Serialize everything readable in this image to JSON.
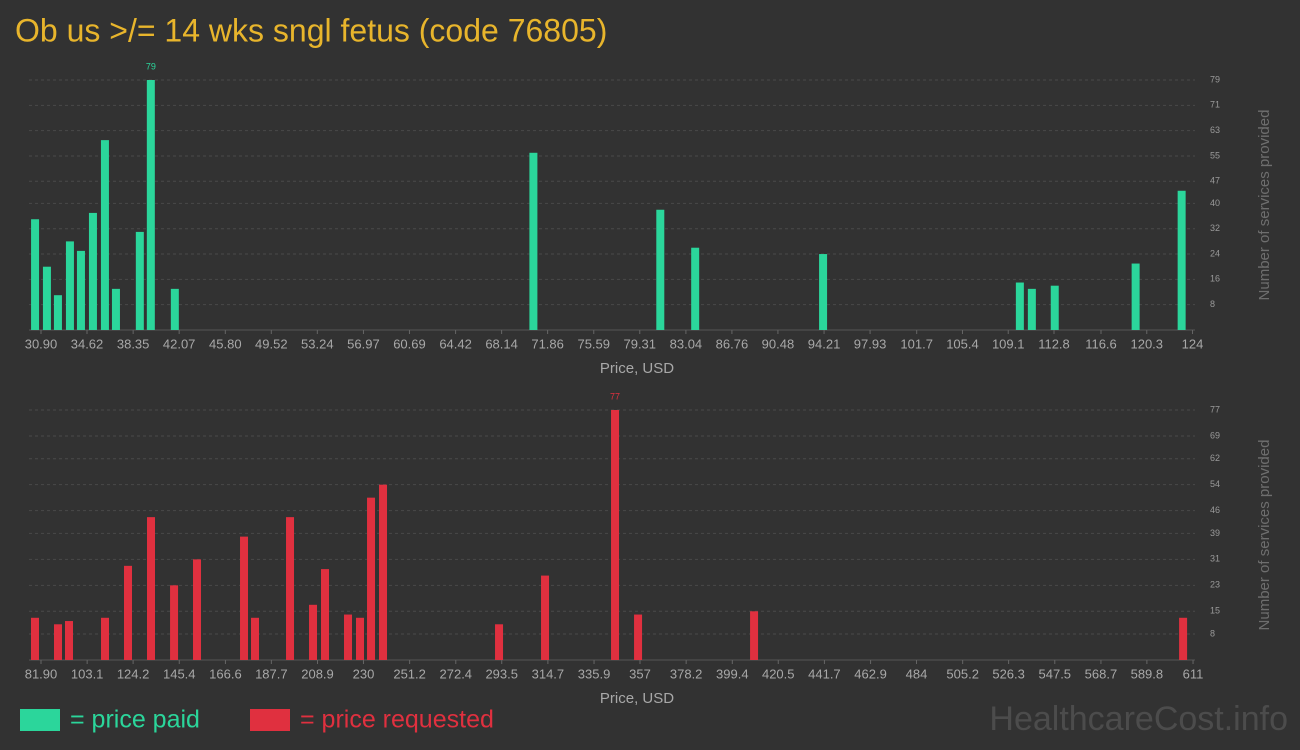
{
  "chart_data": [
    {
      "type": "bar",
      "title": "Ob us >/= 14 wks sngl fetus (code 76805)",
      "xlabel": "Price, USD",
      "ylabel": "Number of services provided",
      "x": [
        30.42,
        31.38,
        32.27,
        33.24,
        34.13,
        35.1,
        36.07,
        36.96,
        38.89,
        39.78,
        41.72,
        70.71,
        80.97,
        83.79,
        94.13,
        110.04,
        111.01,
        112.86,
        119.4,
        123.12
      ],
      "series": [
        {
          "name": "= price paid",
          "color": "#2bd69b",
          "values": [
            35,
            20,
            11,
            28,
            25,
            37,
            60,
            13,
            31,
            79,
            13,
            56,
            38,
            26,
            24,
            15,
            13,
            14,
            21,
            44
          ],
          "value_labels": [
            null,
            null,
            null,
            null,
            null,
            null,
            null,
            null,
            null,
            "79",
            null,
            null,
            null,
            null,
            null,
            null,
            null,
            null,
            null,
            null
          ]
        }
      ],
      "xlim": [
        29.93,
        124.2
      ],
      "xticks": [
        {
          "value": 30.9,
          "label": "30.90"
        },
        34.62,
        38.35,
        42.07,
        {
          "value": 45.8,
          "label": "45.80"
        },
        49.52,
        53.24,
        56.97,
        60.69,
        64.42,
        68.14,
        71.86,
        75.59,
        79.31,
        83.04,
        86.76,
        90.48,
        94.21,
        97.93,
        101.7,
        105.4,
        109.1,
        112.8,
        116.6,
        120.3,
        124
      ],
      "ylim": [
        0,
        79
      ],
      "yticks": [
        8,
        16,
        24,
        32,
        40,
        47,
        55,
        63,
        71,
        79
      ],
      "grid": true
    },
    {
      "type": "bar",
      "xlabel": "Price, USD",
      "ylabel": "Number of services provided",
      "x": [
        79.14,
        89.71,
        94.76,
        111.3,
        121.86,
        132.42,
        143.01,
        153.55,
        175.14,
        180.19,
        196.27,
        206.83,
        212.34,
        222.9,
        228.41,
        233.47,
        238.98,
        292.26,
        313.39,
        345.54,
        356.11,
        409.39,
        606.43
      ],
      "series": [
        {
          "name": "= price requested",
          "color": "#e0303f",
          "values": [
            13,
            11,
            12,
            13,
            29,
            44,
            23,
            31,
            38,
            13,
            44,
            17,
            28,
            14,
            13,
            50,
            54,
            11,
            26,
            77,
            14,
            15,
            13
          ],
          "value_labels": [
            null,
            null,
            null,
            null,
            null,
            null,
            null,
            null,
            null,
            null,
            null,
            null,
            null,
            null,
            null,
            null,
            null,
            null,
            null,
            "77",
            null,
            null,
            null
          ]
        }
      ],
      "xlim": [
        76.39,
        611.9
      ],
      "xticks": [
        {
          "value": 81.9,
          "label": "81.90"
        },
        103.1,
        124.2,
        145.4,
        166.6,
        187.7,
        208.9,
        230,
        251.2,
        272.4,
        293.5,
        314.7,
        335.9,
        357,
        378.2,
        399.4,
        420.5,
        441.7,
        462.9,
        484,
        505.2,
        526.3,
        547.5,
        568.7,
        589.8,
        611
      ],
      "ylim": [
        0,
        77
      ],
      "yticks": [
        8,
        15,
        23,
        31,
        39,
        46,
        54,
        62,
        69,
        77
      ],
      "grid": true
    }
  ],
  "watermark": "HealthcareCost.info"
}
